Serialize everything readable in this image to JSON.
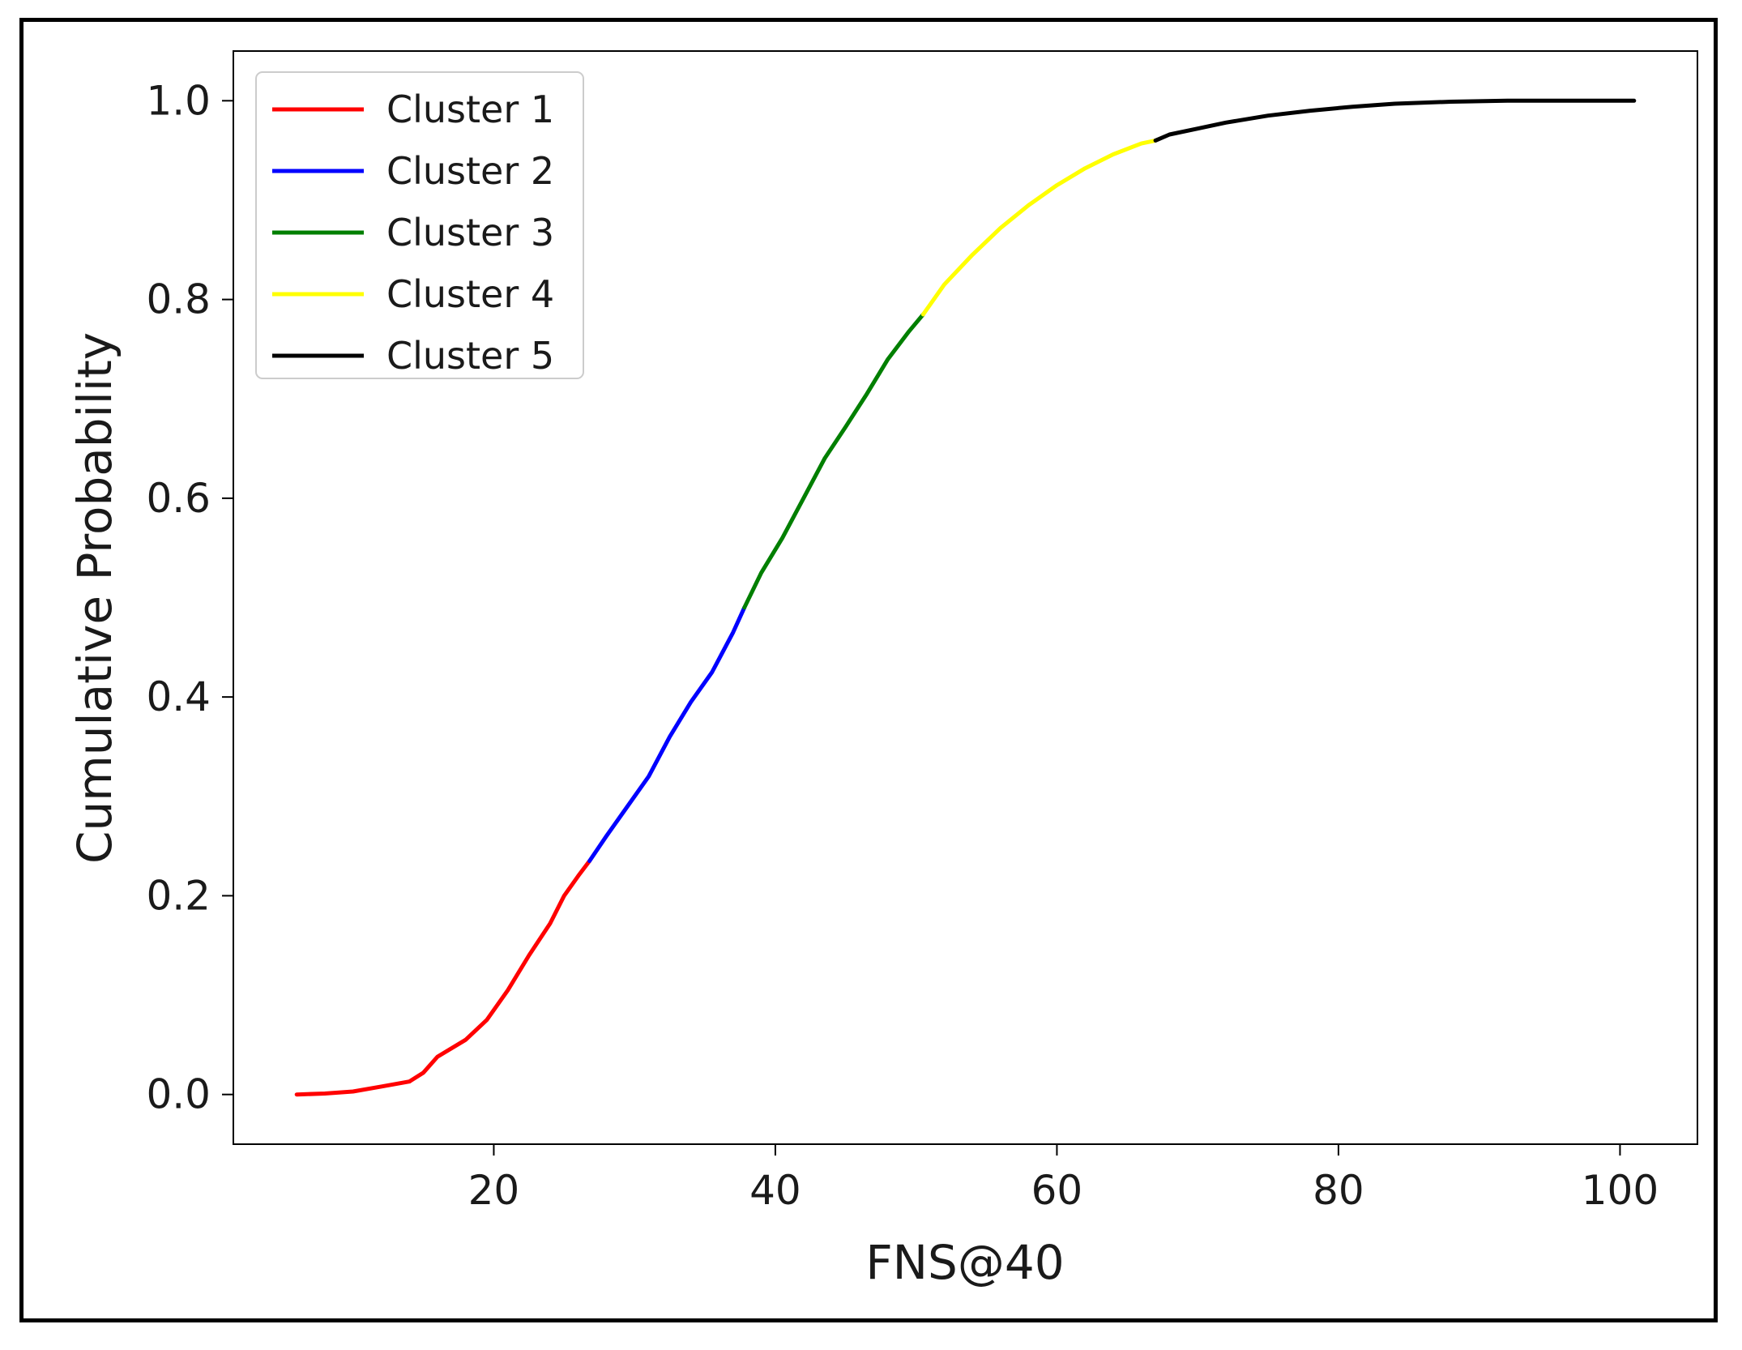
{
  "chart_data": {
    "type": "line",
    "title": "",
    "xlabel": "FNS@40",
    "ylabel": "Cumulative Probability",
    "xlim": [
      1.5,
      105.5
    ],
    "ylim": [
      -0.05,
      1.05
    ],
    "xticks": [
      20,
      40,
      60,
      80,
      100
    ],
    "xtick_labels": [
      "20",
      "40",
      "60",
      "80",
      "100"
    ],
    "yticks": [
      0.0,
      0.2,
      0.4,
      0.6,
      0.8,
      1.0
    ],
    "ytick_labels": [
      "0.0",
      "0.2",
      "0.4",
      "0.6",
      "0.8",
      "1.0"
    ],
    "grid": false,
    "legend_position": "top-left",
    "series": [
      {
        "name": "Cluster 1",
        "color": "#ff0000",
        "points": [
          [
            6.0,
            0.0
          ],
          [
            8,
            0.001
          ],
          [
            10,
            0.003
          ],
          [
            12,
            0.008
          ],
          [
            14,
            0.013
          ],
          [
            15,
            0.022
          ],
          [
            16,
            0.038
          ],
          [
            18,
            0.055
          ],
          [
            19.5,
            0.075
          ],
          [
            21,
            0.105
          ],
          [
            22.5,
            0.14
          ],
          [
            24,
            0.172
          ],
          [
            25,
            0.2
          ],
          [
            26,
            0.22
          ],
          [
            26.8,
            0.235
          ]
        ]
      },
      {
        "name": "Cluster 2",
        "color": "#0000ff",
        "points": [
          [
            26.8,
            0.235
          ],
          [
            28,
            0.26
          ],
          [
            29.5,
            0.29
          ],
          [
            31,
            0.32
          ],
          [
            32.5,
            0.36
          ],
          [
            34,
            0.395
          ],
          [
            35.5,
            0.425
          ],
          [
            37,
            0.465
          ],
          [
            37.8,
            0.49
          ]
        ]
      },
      {
        "name": "Cluster 3",
        "color": "#007f00",
        "points": [
          [
            37.8,
            0.49
          ],
          [
            39,
            0.525
          ],
          [
            40.5,
            0.56
          ],
          [
            42,
            0.6
          ],
          [
            43.5,
            0.64
          ],
          [
            45,
            0.672
          ],
          [
            46.5,
            0.705
          ],
          [
            48,
            0.74
          ],
          [
            49.5,
            0.768
          ],
          [
            50.5,
            0.785
          ]
        ]
      },
      {
        "name": "Cluster 4",
        "color": "#ffff00",
        "points": [
          [
            50.5,
            0.785
          ],
          [
            52,
            0.815
          ],
          [
            54,
            0.845
          ],
          [
            56,
            0.872
          ],
          [
            58,
            0.895
          ],
          [
            60,
            0.915
          ],
          [
            62,
            0.932
          ],
          [
            64,
            0.946
          ],
          [
            66,
            0.957
          ],
          [
            67,
            0.96
          ]
        ]
      },
      {
        "name": "Cluster 5",
        "color": "#000000",
        "points": [
          [
            67,
            0.96
          ],
          [
            68,
            0.966
          ],
          [
            70,
            0.972
          ],
          [
            72,
            0.978
          ],
          [
            75,
            0.985
          ],
          [
            78,
            0.99
          ],
          [
            81,
            0.994
          ],
          [
            84,
            0.997
          ],
          [
            88,
            0.999
          ],
          [
            92,
            1.0
          ],
          [
            101,
            1.0
          ]
        ]
      }
    ]
  }
}
